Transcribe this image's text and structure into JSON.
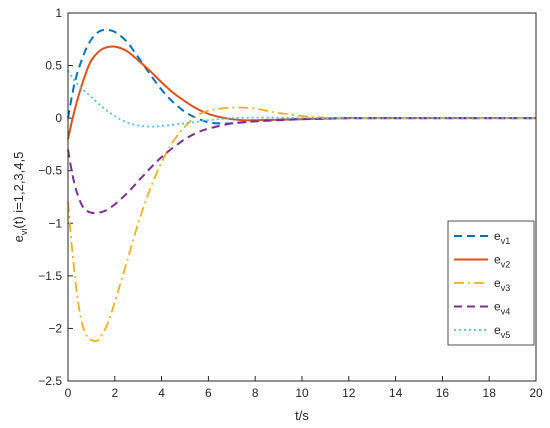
{
  "chart_data": {
    "type": "line",
    "xlabel": "t/s",
    "ylabel": {
      "main": "e",
      "sub": "vi",
      "rest": "(t) i=1,2,3,4,5"
    },
    "xlim": [
      0,
      20
    ],
    "ylim": [
      -2.5,
      1
    ],
    "xticks": [
      0,
      2,
      4,
      6,
      8,
      10,
      12,
      14,
      16,
      18,
      20
    ],
    "yticks": [
      1,
      0.5,
      0,
      -0.5,
      -1,
      -1.5,
      -2,
      -2.5
    ],
    "ytick_labels": [
      "1",
      "0.5",
      "0",
      "−0.5",
      "−1",
      "−1.5",
      "−2",
      "−2.5"
    ],
    "grid": false,
    "legend_position": "bottom-right",
    "series": [
      {
        "name": "e",
        "sub": "v1",
        "color": "#0072BD",
        "dash": "8,5",
        "width": 2,
        "x": [
          0,
          0.3,
          0.7,
          1.0,
          1.3,
          1.6,
          2.0,
          2.5,
          3.0,
          3.5,
          4.0,
          4.5,
          5.0,
          5.5,
          6.0,
          6.5,
          7.0,
          7.5,
          8,
          9,
          10,
          11,
          12,
          14,
          16,
          18,
          20
        ],
        "y": [
          0,
          0.35,
          0.62,
          0.75,
          0.82,
          0.84,
          0.82,
          0.73,
          0.58,
          0.42,
          0.27,
          0.15,
          0.06,
          0.0,
          -0.04,
          -0.05,
          -0.05,
          -0.04,
          -0.03,
          -0.015,
          -0.007,
          -0.003,
          0,
          0,
          0,
          0,
          0
        ]
      },
      {
        "name": "e",
        "sub": "v2",
        "color": "#D95319",
        "dash": "",
        "width": 2,
        "x": [
          0,
          0.2,
          0.5,
          0.8,
          1.0,
          1.3,
          1.6,
          2.0,
          2.5,
          3.0,
          3.5,
          4.0,
          4.5,
          5.0,
          5.5,
          6.0,
          6.5,
          7.0,
          7.5,
          8,
          9,
          10,
          11,
          12,
          14,
          16,
          18,
          20
        ],
        "y": [
          -0.2,
          0.0,
          0.25,
          0.45,
          0.55,
          0.63,
          0.67,
          0.68,
          0.64,
          0.55,
          0.45,
          0.34,
          0.24,
          0.16,
          0.09,
          0.04,
          0.01,
          -0.01,
          -0.02,
          -0.02,
          -0.015,
          -0.01,
          -0.005,
          0,
          0,
          0,
          0,
          0
        ]
      },
      {
        "name": "e",
        "sub": "v3",
        "color": "#EDB120",
        "dash": "10,4,2,4",
        "width": 1.8,
        "x": [
          0,
          0.2,
          0.4,
          0.6,
          0.8,
          1.0,
          1.2,
          1.4,
          1.7,
          2.0,
          2.5,
          3.0,
          3.5,
          4.0,
          4.5,
          5.0,
          5.5,
          6.0,
          6.5,
          7.0,
          7.5,
          8.0,
          8.5,
          9,
          10,
          11,
          12,
          14,
          16,
          18,
          20
        ],
        "y": [
          -0.8,
          -1.3,
          -1.7,
          -1.95,
          -2.07,
          -2.11,
          -2.12,
          -2.08,
          -1.95,
          -1.75,
          -1.38,
          -1.0,
          -0.68,
          -0.42,
          -0.22,
          -0.08,
          0.02,
          0.07,
          0.09,
          0.1,
          0.1,
          0.09,
          0.07,
          0.05,
          0.02,
          0.005,
          0,
          0,
          0,
          0,
          0
        ]
      },
      {
        "name": "e",
        "sub": "v4",
        "color": "#7E2F8E",
        "dash": "8,5",
        "width": 2,
        "x": [
          0,
          0.2,
          0.4,
          0.6,
          0.8,
          1.0,
          1.3,
          1.6,
          2.0,
          2.5,
          3.0,
          3.5,
          4.0,
          4.5,
          5.0,
          5.5,
          6.0,
          7,
          8,
          9,
          10,
          11,
          12,
          14,
          16,
          18,
          20
        ],
        "y": [
          -0.3,
          -0.55,
          -0.72,
          -0.83,
          -0.88,
          -0.9,
          -0.9,
          -0.88,
          -0.82,
          -0.72,
          -0.6,
          -0.48,
          -0.37,
          -0.28,
          -0.2,
          -0.14,
          -0.1,
          -0.05,
          -0.03,
          -0.02,
          -0.01,
          -0.005,
          0,
          0,
          0,
          0,
          0
        ]
      },
      {
        "name": "e",
        "sub": "v5",
        "color": "#4DBEEE",
        "dash": "2,3",
        "width": 1.8,
        "x": [
          0,
          0.3,
          0.6,
          1.0,
          1.5,
          2.0,
          2.5,
          3.0,
          3.5,
          4.0,
          5.0,
          6.0,
          7.0,
          8.0,
          9,
          10,
          12,
          14,
          16,
          18,
          20
        ],
        "y": [
          0.45,
          0.35,
          0.28,
          0.2,
          0.1,
          0.02,
          -0.04,
          -0.07,
          -0.08,
          -0.075,
          -0.05,
          -0.02,
          0,
          0.005,
          0.005,
          0.002,
          0,
          0,
          0,
          0,
          0
        ]
      }
    ]
  }
}
